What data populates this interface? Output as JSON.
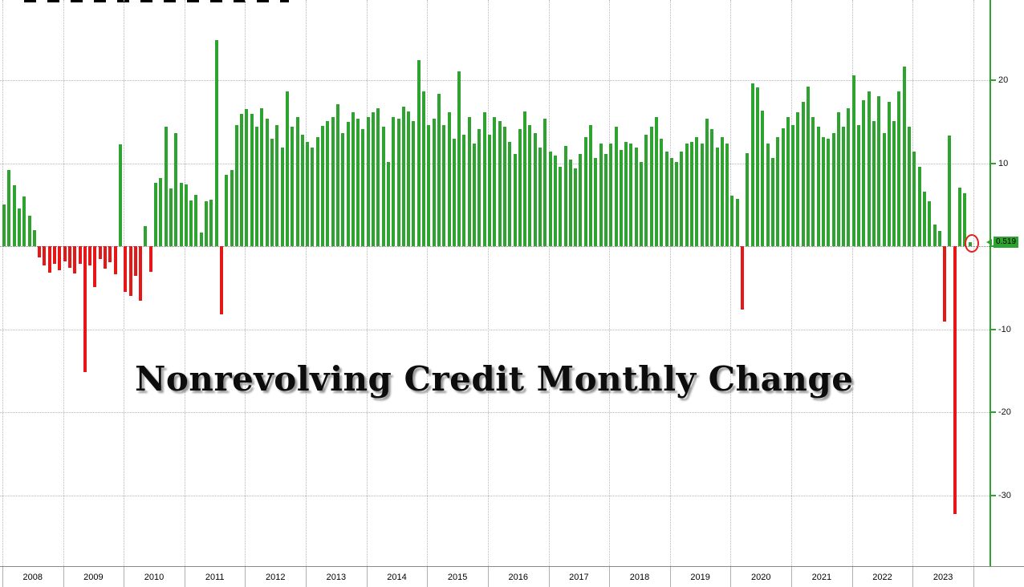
{
  "title_overlay": "Nonrevolving Credit Monthly Change",
  "annotation": {
    "last_value_label": "0.519",
    "circle_color": "#e0201d",
    "label_background": "#2fa32f"
  },
  "y_axis": {
    "visible_tick_labels": [
      "20",
      "10",
      "-10",
      "-20",
      "-30"
    ],
    "axis_color": "#2fa32f",
    "label_color": "#111111"
  },
  "x_axis": {
    "years": [
      "2008",
      "2009",
      "2010",
      "2011",
      "2012",
      "2013",
      "2014",
      "2015",
      "2016",
      "2017",
      "2018",
      "2019",
      "2020",
      "2021",
      "2022",
      "2023"
    ]
  },
  "chart_data": {
    "type": "bar",
    "title": "Nonrevolving Credit Monthly Change",
    "categories": [
      "2008",
      "2009",
      "2010",
      "2011",
      "2012",
      "2013",
      "2014",
      "2015",
      "2016",
      "2017",
      "2018",
      "2019",
      "2020",
      "2021",
      "2022",
      "2023"
    ],
    "values_per_year": 12,
    "values": [
      5.0,
      9.2,
      7.3,
      4.5,
      6.0,
      3.7,
      1.9,
      -1.4,
      -2.3,
      -3.2,
      -2.1,
      -2.9,
      -1.8,
      -2.6,
      -3.3,
      -2.1,
      -15.2,
      -2.3,
      -4.9,
      -1.5,
      -2.7,
      -1.9,
      -3.4,
      12.3,
      -5.5,
      -6.0,
      -3.6,
      -6.6,
      2.4,
      -3.1,
      7.6,
      8.2,
      14.4,
      7.0,
      13.6,
      7.6,
      7.4,
      5.5,
      6.2,
      1.6,
      5.4,
      5.6,
      24.8,
      -8.2,
      8.6,
      9.2,
      14.6,
      15.9,
      16.5,
      15.9,
      14.4,
      16.6,
      15.4,
      12.9,
      14.6,
      11.9,
      18.6,
      14.4,
      15.6,
      13.4,
      12.6,
      11.9,
      13.1,
      14.5,
      15.1,
      15.6,
      17.1,
      13.6,
      15.0,
      16.1,
      15.4,
      14.1,
      15.6,
      16.1,
      16.6,
      14.4,
      10.1,
      15.6,
      15.4,
      16.8,
      16.2,
      15.1,
      22.4,
      18.6,
      14.6,
      15.4,
      18.4,
      14.6,
      16.1,
      12.9,
      21.1,
      13.4,
      15.6,
      12.4,
      14.1,
      16.1,
      13.4,
      15.6,
      15.1,
      14.4,
      12.6,
      11.1,
      14.1,
      16.2,
      14.6,
      13.6,
      11.9,
      15.4,
      11.4,
      10.9,
      9.6,
      12.1,
      10.4,
      9.4,
      11.1,
      13.1,
      14.6,
      10.6,
      12.4,
      11.1,
      12.4,
      14.4,
      11.6,
      12.6,
      12.4,
      11.9,
      10.1,
      13.4,
      14.4,
      15.6,
      12.9,
      11.4,
      10.6,
      10.1,
      11.4,
      12.4,
      12.6,
      13.1,
      12.4,
      15.4,
      14.1,
      11.9,
      13.1,
      12.4,
      6.1,
      5.7,
      -7.6,
      11.2,
      19.6,
      19.1,
      16.3,
      12.4,
      10.6,
      13.1,
      14.2,
      15.6,
      14.6,
      16.1,
      17.4,
      19.2,
      15.6,
      14.4,
      13.1,
      12.9,
      13.6,
      16.1,
      14.4,
      16.6,
      20.6,
      14.6,
      17.6,
      18.6,
      15.1,
      18.1,
      13.6,
      17.4,
      15.1,
      18.6,
      21.6,
      14.4,
      11.4,
      9.6,
      6.6,
      5.4,
      2.6,
      1.8,
      -9.1,
      13.3,
      -32.3,
      7.1,
      6.4,
      0.519
    ],
    "yticks": [
      20,
      10,
      0,
      -10,
      -20,
      -30
    ],
    "ylim": [
      -34,
      26
    ],
    "grid": "dotted",
    "legend": "none",
    "axis_position": "right",
    "positive_color": "#2fa32f",
    "negative_color": "#e61717",
    "last_value": 0.519
  }
}
